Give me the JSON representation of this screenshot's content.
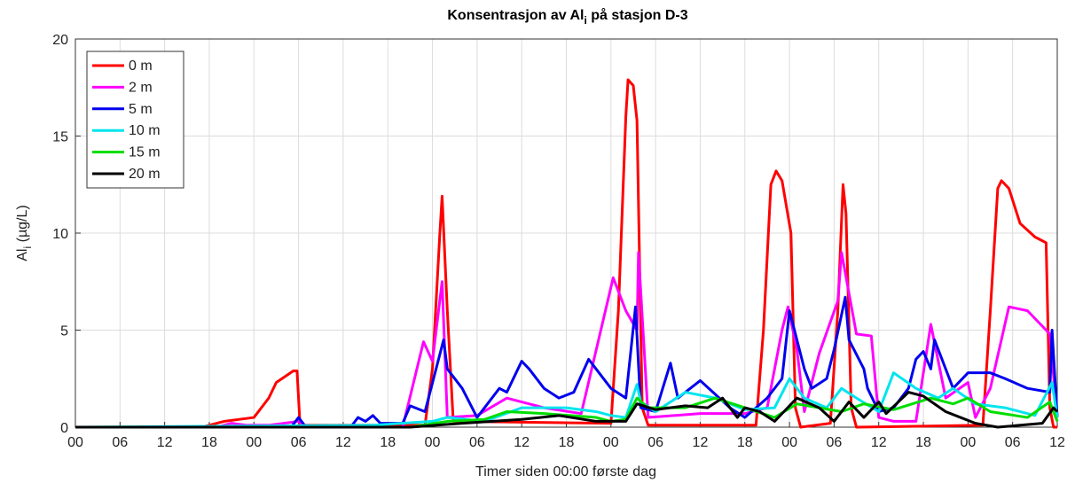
{
  "chart_data": {
    "type": "line",
    "title_parts": [
      "Konsentrasjon av Al",
      "i",
      " på stasjon D-3"
    ],
    "ylabel_parts": [
      "Al",
      "i",
      " (µg/L)"
    ],
    "xlabel": "Timer siden 00:00 første dag",
    "xlim": [
      0,
      132
    ],
    "ylim": [
      0,
      20
    ],
    "yticks": [
      0,
      5,
      10,
      15,
      20
    ],
    "xticks": [
      {
        "value": 0,
        "label": "00"
      },
      {
        "value": 6,
        "label": "06"
      },
      {
        "value": 12,
        "label": "12"
      },
      {
        "value": 18,
        "label": "18"
      },
      {
        "value": 24,
        "label": "00"
      },
      {
        "value": 30,
        "label": "06"
      },
      {
        "value": 36,
        "label": "12"
      },
      {
        "value": 42,
        "label": "18"
      },
      {
        "value": 48,
        "label": "00"
      },
      {
        "value": 54,
        "label": "06"
      },
      {
        "value": 60,
        "label": "12"
      },
      {
        "value": 66,
        "label": "18"
      },
      {
        "value": 72,
        "label": "00"
      },
      {
        "value": 78,
        "label": "06"
      },
      {
        "value": 84,
        "label": "12"
      },
      {
        "value": 90,
        "label": "18"
      },
      {
        "value": 96,
        "label": "00"
      },
      {
        "value": 102,
        "label": "06"
      },
      {
        "value": 108,
        "label": "12"
      },
      {
        "value": 114,
        "label": "18"
      },
      {
        "value": 120,
        "label": "00"
      },
      {
        "value": 126,
        "label": "06"
      },
      {
        "value": 132,
        "label": "12"
      }
    ],
    "grid": true,
    "legend": "upper left",
    "series": [
      {
        "name": "0 m",
        "color": "#ff0000",
        "x": [
          0,
          17,
          20,
          24,
          26,
          27,
          29.3,
          29.8,
          30.2,
          47,
          48,
          49,
          49.3,
          50,
          50.8,
          72,
          73,
          74,
          74.3,
          75,
          75.5,
          76.2,
          77,
          91.5,
          92.5,
          93.5,
          94.2,
          95,
          96.2,
          96.8,
          97.5,
          101.5,
          102.5,
          103.2,
          103.6,
          104.3,
          105,
          122,
          123,
          124,
          124.5,
          125.5,
          127,
          129,
          130.5,
          131,
          131.5,
          132
        ],
        "values": [
          0,
          0,
          0.3,
          0.5,
          1.5,
          2.3,
          2.9,
          2.9,
          0.1,
          0.1,
          3,
          10,
          11.9,
          6,
          0.3,
          0.2,
          6,
          16,
          17.9,
          17.6,
          15.8,
          1,
          0.1,
          0.1,
          5,
          12.5,
          13.2,
          12.7,
          10,
          1,
          0,
          0.2,
          6,
          12.5,
          11,
          1,
          0,
          0.1,
          6,
          12.3,
          12.7,
          12.3,
          10.5,
          9.8,
          9.5,
          1,
          0,
          0
        ]
      },
      {
        "name": "2 m",
        "color": "#ff00ff",
        "x": [
          0,
          19,
          21,
          23,
          26,
          30,
          31,
          44,
          46.8,
          48,
          49.3,
          50,
          54,
          58,
          63,
          68,
          72.3,
          74,
          75.5,
          75.7,
          77,
          84,
          90,
          93,
          95,
          95.8,
          97,
          98,
          100,
          102.5,
          103,
          105,
          107,
          108,
          110,
          113,
          115,
          117,
          120,
          121,
          123,
          125.5,
          128,
          130.5,
          131,
          132
        ],
        "values": [
          0,
          0,
          0.2,
          0.1,
          0.1,
          0.3,
          0,
          0,
          4.4,
          3.4,
          7.5,
          0.5,
          0.6,
          1.5,
          1,
          0.7,
          7.7,
          6,
          5,
          9,
          0.5,
          0.7,
          0.7,
          1,
          5,
          6.2,
          4,
          0.8,
          3.8,
          6.5,
          9,
          4.8,
          4.7,
          0.5,
          0.3,
          0.3,
          5.3,
          1.5,
          2.3,
          0.5,
          2,
          6.2,
          6,
          5,
          4.8,
          0.5
        ]
      },
      {
        "name": "5 m",
        "color": "#0000ee",
        "x": [
          0,
          29,
          30,
          31,
          37,
          38,
          39,
          40,
          41,
          44,
          45,
          47,
          49.5,
          50,
          52,
          54,
          57,
          58,
          60,
          61,
          63,
          65,
          67,
          69,
          70,
          72,
          74,
          75.3,
          76,
          78,
          80,
          81,
          84,
          86,
          88,
          90,
          93,
          95,
          96,
          97,
          98,
          99,
          101,
          102,
          103.5,
          104,
          106,
          106.5,
          108,
          110,
          112,
          113,
          114,
          115,
          115.5,
          117,
          118,
          120,
          123,
          125,
          128,
          131,
          131.3,
          132
        ],
        "values": [
          0,
          0,
          0.5,
          0,
          0,
          0.5,
          0.3,
          0.6,
          0.2,
          0.2,
          1.1,
          0.8,
          4.5,
          3,
          2,
          0.5,
          2,
          1.8,
          3.4,
          3,
          2,
          1.5,
          1.8,
          3.5,
          3,
          2,
          1.5,
          6.2,
          1,
          0.8,
          3.3,
          1.5,
          2.4,
          1.7,
          1,
          0.5,
          1.5,
          2.5,
          6,
          4.5,
          3,
          2,
          2.5,
          4,
          6.7,
          4.5,
          3,
          2,
          0.8,
          1,
          2,
          3.5,
          3.9,
          3,
          4.5,
          3,
          2,
          2.8,
          2.8,
          2.5,
          2,
          1.8,
          5,
          0.5
        ]
      },
      {
        "name": "10 m",
        "color": "#00e5ee",
        "x": [
          0,
          40,
          48,
          50,
          55,
          60,
          66,
          70,
          72,
          74,
          75.5,
          76,
          78,
          82,
          86,
          90,
          94,
          96,
          98,
          101,
          103,
          105,
          108,
          110,
          113,
          116,
          118,
          121,
          125,
          129,
          131.3,
          132
        ],
        "values": [
          0,
          0.1,
          0.3,
          0.5,
          0.3,
          1,
          1,
          0.8,
          0.6,
          0.5,
          2.2,
          1.3,
          0.8,
          1.8,
          1.5,
          0.9,
          1,
          2.5,
          1.5,
          1,
          2,
          1.5,
          0.8,
          2.8,
          2,
          1.5,
          2,
          1.2,
          1,
          0.6,
          2.3,
          0.5
        ]
      },
      {
        "name": "15 m",
        "color": "#00dd00",
        "x": [
          0,
          45,
          50,
          55,
          58,
          63,
          70,
          72,
          74,
          75.5,
          77,
          82,
          86,
          90,
          94,
          97,
          100,
          103,
          106,
          110,
          115,
          118,
          120,
          123,
          128,
          131,
          132
        ],
        "values": [
          0,
          0,
          0.3,
          0.4,
          0.8,
          0.7,
          0.5,
          0.3,
          0.4,
          1.5,
          1,
          1,
          1.5,
          1,
          0.5,
          1.2,
          1,
          0.8,
          1.2,
          0.9,
          1.5,
          1.2,
          1.5,
          0.8,
          0.5,
          1.3,
          0.3
        ]
      },
      {
        "name": "20 m",
        "color": "#000000",
        "x": [
          0,
          45,
          52,
          60,
          65,
          70,
          74,
          75.5,
          78,
          82,
          85,
          87,
          89,
          90,
          92,
          94,
          97,
          100,
          102,
          104,
          106,
          108,
          109,
          112,
          114,
          117,
          119,
          121,
          124,
          130,
          131.5,
          132
        ],
        "values": [
          0,
          0,
          0.2,
          0.4,
          0.6,
          0.3,
          0.3,
          1.2,
          0.9,
          1.1,
          1,
          1.5,
          0.5,
          1,
          0.8,
          0.3,
          1.5,
          1,
          0.3,
          1.3,
          0.5,
          1.3,
          0.7,
          1.8,
          1.6,
          0.8,
          0.5,
          0.2,
          0,
          0.2,
          1,
          0.8
        ]
      }
    ]
  }
}
